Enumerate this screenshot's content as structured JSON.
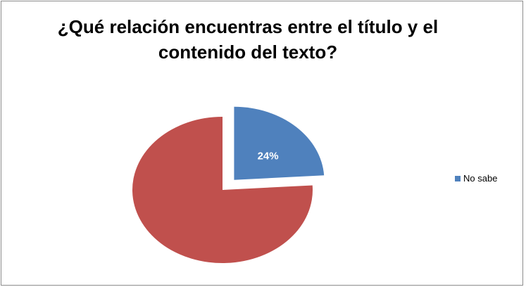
{
  "chart_data": {
    "type": "pie",
    "title_lines": [
      "¿Qué relación encuentras entre el título y el",
      "contenido del texto?"
    ],
    "slices": [
      {
        "name": "No sabe",
        "value": 24,
        "label": "24%",
        "color": "#4f81bd",
        "exploded": true,
        "in_legend": true
      },
      {
        "name": "",
        "value": 76,
        "label": "",
        "color": "#c0504d",
        "exploded": false,
        "in_legend": false
      }
    ],
    "legend_position": "right"
  }
}
